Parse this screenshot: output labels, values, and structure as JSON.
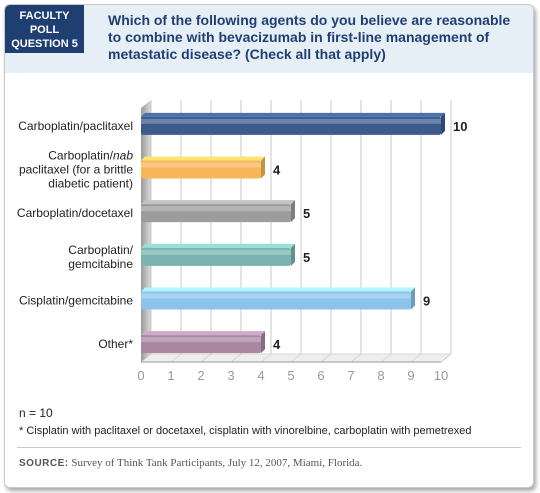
{
  "badge": {
    "line1": "FACULTY",
    "line2": "POLL",
    "line3": "QUESTION 5"
  },
  "question": "Which of the following agents do you believe are reasonable to combine with bevacizumab in first-line management of metastatic disease? (Check all that apply)",
  "chart_data": {
    "type": "bar",
    "orientation": "horizontal",
    "categories": [
      [
        "Carboplatin/paclitaxel"
      ],
      [
        "Carboplatin/nab",
        "paclitaxel (for a brittle",
        "diabetic patient)"
      ],
      [
        "Carboplatin/docetaxel"
      ],
      [
        "Carboplatin/",
        "gemcitabine"
      ],
      [
        "Cisplatin/gemcitabine"
      ],
      [
        "Other*"
      ]
    ],
    "values": [
      10,
      4,
      5,
      5,
      9,
      4
    ],
    "xlim": [
      0,
      10
    ],
    "xticks": [
      0,
      1,
      2,
      3,
      4,
      5,
      6,
      7,
      8,
      9,
      10
    ],
    "grid": true,
    "colors": [
      "#3c5b8c",
      "#f7b65a",
      "#9c9c9c",
      "#79b4b0",
      "#8cc3ea",
      "#a987a1"
    ]
  },
  "n_label": "n = 10",
  "footnote": "* Cisplatin with paclitaxel or docetaxel, cisplatin with vinorelbine, carboplatin with pemetrexed",
  "source": {
    "label": "SOURCE:",
    "text": "Survey of Think Tank Participants, July 12, 2007, Miami, Florida."
  }
}
